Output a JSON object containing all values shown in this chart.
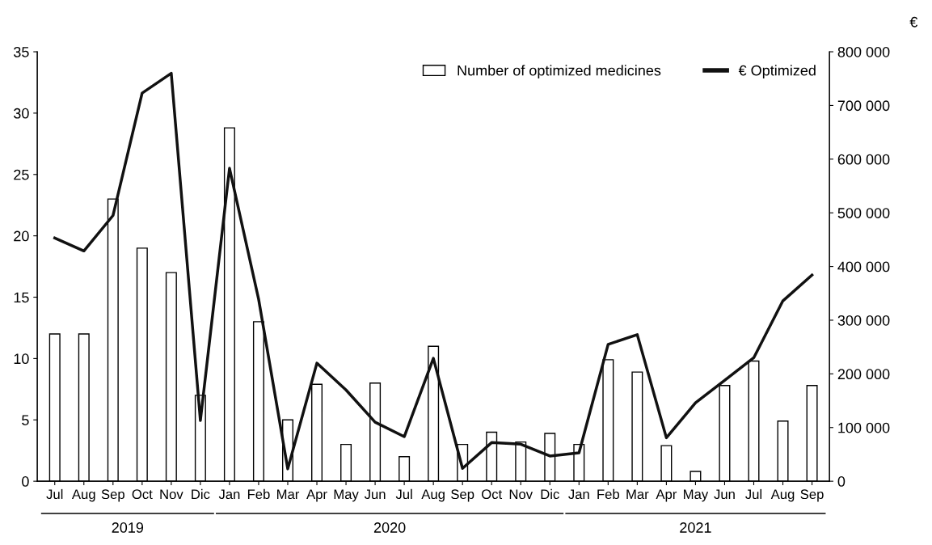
{
  "chart_data": {
    "type": "bar",
    "categories": [
      "Jul",
      "Aug",
      "Sep",
      "Oct",
      "Nov",
      "Dic",
      "Jan",
      "Feb",
      "Mar",
      "Apr",
      "May",
      "Jun",
      "Jul",
      "Aug",
      "Sep",
      "Oct",
      "Nov",
      "Dic",
      "Jan",
      "Feb",
      "Mar",
      "Apr",
      "May",
      "Jun",
      "Jul",
      "Aug",
      "Sep"
    ],
    "series": [
      {
        "name": "Number of optimized medicines",
        "color": "#ffffff",
        "values": [
          12,
          12,
          23,
          19,
          17,
          7,
          28.8,
          13,
          5,
          7.9,
          3,
          8,
          2,
          11,
          3,
          4,
          3.2,
          3.9,
          3,
          9.9,
          8.9,
          2.9,
          0.8,
          7.8,
          9.8,
          4.9,
          7.8
        ]
      },
      {
        "name": "€ Optimized",
        "type": "line",
        "axis": "y2",
        "color": "#111111",
        "values": [
          453000,
          429000,
          495000,
          723000,
          760000,
          113000,
          583000,
          339000,
          23000,
          220000,
          170000,
          110000,
          83000,
          229000,
          24000,
          72000,
          69000,
          47000,
          53000,
          255000,
          273000,
          81000,
          146000,
          188000,
          230000,
          336000,
          384000
        ]
      }
    ],
    "y2label": "€",
    "ylim": [
      0,
      35
    ],
    "yticks": [
      0,
      5,
      10,
      15,
      20,
      25,
      30,
      35
    ],
    "y2lim": [
      0,
      800000
    ],
    "y2ticks": [
      0,
      {
        "value": 100000,
        "label": "100 000"
      },
      {
        "value": 200000,
        "label": "200 000"
      },
      {
        "value": 300000,
        "label": "300 000"
      },
      {
        "value": 400000,
        "label": "400 000"
      },
      {
        "value": 500000,
        "label": "500 000"
      },
      {
        "value": 600000,
        "label": "600 000"
      },
      {
        "value": 700000,
        "label": "700 000"
      },
      {
        "value": 800000,
        "label": "800 000"
      }
    ],
    "annotations": [
      "2019",
      "2020",
      "2021"
    ],
    "legend": "top right",
    "grid": false
  }
}
